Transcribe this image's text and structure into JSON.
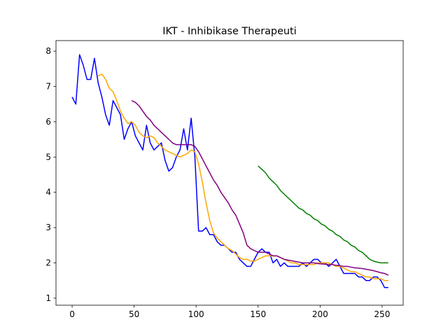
{
  "chart_data": {
    "type": "line",
    "title": "IKT - Inhibikase Therapeuti",
    "x": [
      0,
      3,
      6,
      9,
      12,
      15,
      18,
      21,
      24,
      27,
      30,
      33,
      36,
      39,
      42,
      45,
      48,
      51,
      54,
      57,
      60,
      63,
      66,
      69,
      72,
      75,
      78,
      81,
      84,
      87,
      90,
      93,
      96,
      99,
      102,
      105,
      108,
      111,
      114,
      117,
      120,
      123,
      126,
      129,
      132,
      135,
      138,
      141,
      144,
      147,
      150,
      153,
      156,
      159,
      162,
      165,
      168,
      171,
      174,
      177,
      180,
      183,
      186,
      189,
      192,
      195,
      198,
      201,
      204,
      207,
      210,
      213,
      216,
      219,
      222,
      225,
      228,
      231,
      234,
      237,
      240,
      243,
      246,
      249,
      252,
      255
    ],
    "series": [
      {
        "color": "#0000ff",
        "values": [
          6.7,
          6.5,
          7.9,
          7.6,
          7.2,
          7.2,
          7.8,
          7.1,
          6.7,
          6.2,
          5.9,
          6.6,
          6.4,
          6.2,
          5.5,
          5.8,
          6.0,
          5.6,
          5.4,
          5.2,
          5.9,
          5.4,
          5.2,
          5.3,
          5.4,
          4.9,
          4.6,
          4.7,
          5.0,
          5.2,
          5.8,
          5.2,
          6.1,
          5.0,
          2.9,
          2.9,
          3.0,
          2.8,
          2.8,
          2.6,
          2.5,
          2.5,
          2.4,
          2.3,
          2.3,
          2.1,
          2.0,
          1.9,
          1.9,
          2.1,
          2.3,
          2.4,
          2.3,
          2.3,
          2.0,
          2.1,
          1.9,
          2.0,
          1.9,
          1.9,
          1.9,
          1.9,
          2.0,
          1.9,
          2.0,
          2.1,
          2.1,
          2.0,
          2.0,
          1.9,
          2.0,
          2.1,
          1.9,
          1.7,
          1.7,
          1.7,
          1.7,
          1.6,
          1.6,
          1.5,
          1.5,
          1.6,
          1.6,
          1.5,
          1.3,
          1.3
        ]
      },
      {
        "color": "#ffa500",
        "values": [
          null,
          null,
          null,
          null,
          null,
          null,
          null,
          7.3,
          7.35,
          7.2,
          6.95,
          6.85,
          6.6,
          6.3,
          6.1,
          5.95,
          6.0,
          5.9,
          5.7,
          5.6,
          5.55,
          5.6,
          5.55,
          5.4,
          5.3,
          5.2,
          5.15,
          5.1,
          5.05,
          5.0,
          5.05,
          5.1,
          5.2,
          5.15,
          4.8,
          4.3,
          3.7,
          3.2,
          2.85,
          2.7,
          2.6,
          2.5,
          2.4,
          2.35,
          2.25,
          2.15,
          2.1,
          2.1,
          2.05,
          2.05,
          2.1,
          2.15,
          2.2,
          2.2,
          2.2,
          2.2,
          2.15,
          2.1,
          2.05,
          2.0,
          2.0,
          1.95,
          1.95,
          1.95,
          1.95,
          1.95,
          2.0,
          2.0,
          2.0,
          2.0,
          1.95,
          1.9,
          1.9,
          1.85,
          1.8,
          1.75,
          1.75,
          1.7,
          1.65,
          1.6,
          1.6,
          1.55,
          1.55,
          1.55,
          1.5,
          1.5
        ]
      },
      {
        "color": "#800080",
        "values": [
          null,
          null,
          null,
          null,
          null,
          null,
          null,
          null,
          null,
          null,
          null,
          null,
          null,
          null,
          null,
          null,
          6.6,
          6.55,
          6.45,
          6.3,
          6.15,
          6.05,
          5.9,
          5.8,
          5.7,
          5.6,
          5.5,
          5.4,
          5.35,
          5.35,
          5.35,
          5.35,
          5.35,
          5.3,
          5.15,
          4.95,
          4.75,
          4.55,
          4.35,
          4.2,
          4.0,
          3.85,
          3.7,
          3.5,
          3.35,
          3.1,
          2.85,
          2.5,
          2.4,
          2.35,
          2.3,
          2.3,
          2.3,
          2.25,
          2.2,
          2.2,
          2.15,
          2.1,
          2.08,
          2.06,
          2.04,
          2.02,
          2.0,
          2.0,
          2.0,
          2.0,
          1.98,
          1.97,
          1.96,
          1.95,
          1.95,
          1.93,
          1.92,
          1.9,
          1.9,
          1.88,
          1.86,
          1.85,
          1.84,
          1.82,
          1.8,
          1.78,
          1.75,
          1.72,
          1.7,
          1.65
        ]
      },
      {
        "color": "#008000",
        "values": [
          null,
          null,
          null,
          null,
          null,
          null,
          null,
          null,
          null,
          null,
          null,
          null,
          null,
          null,
          null,
          null,
          null,
          null,
          null,
          null,
          null,
          null,
          null,
          null,
          null,
          null,
          null,
          null,
          null,
          null,
          null,
          null,
          null,
          null,
          null,
          null,
          null,
          null,
          null,
          null,
          null,
          null,
          null,
          null,
          null,
          null,
          null,
          null,
          null,
          null,
          4.75,
          4.65,
          4.55,
          4.4,
          4.3,
          4.2,
          4.05,
          3.95,
          3.85,
          3.75,
          3.65,
          3.55,
          3.5,
          3.4,
          3.35,
          3.25,
          3.2,
          3.1,
          3.05,
          2.95,
          2.9,
          2.8,
          2.75,
          2.65,
          2.6,
          2.5,
          2.45,
          2.35,
          2.3,
          2.2,
          2.1,
          2.05,
          2.02,
          2.0,
          2.0,
          2.0
        ]
      }
    ],
    "xlim": [
      -13,
      267
    ],
    "ylim": [
      0.8,
      8.3
    ],
    "xticks": [
      0,
      50,
      100,
      150,
      200,
      250
    ],
    "yticks": [
      1,
      2,
      3,
      4,
      5,
      6,
      7,
      8
    ]
  }
}
